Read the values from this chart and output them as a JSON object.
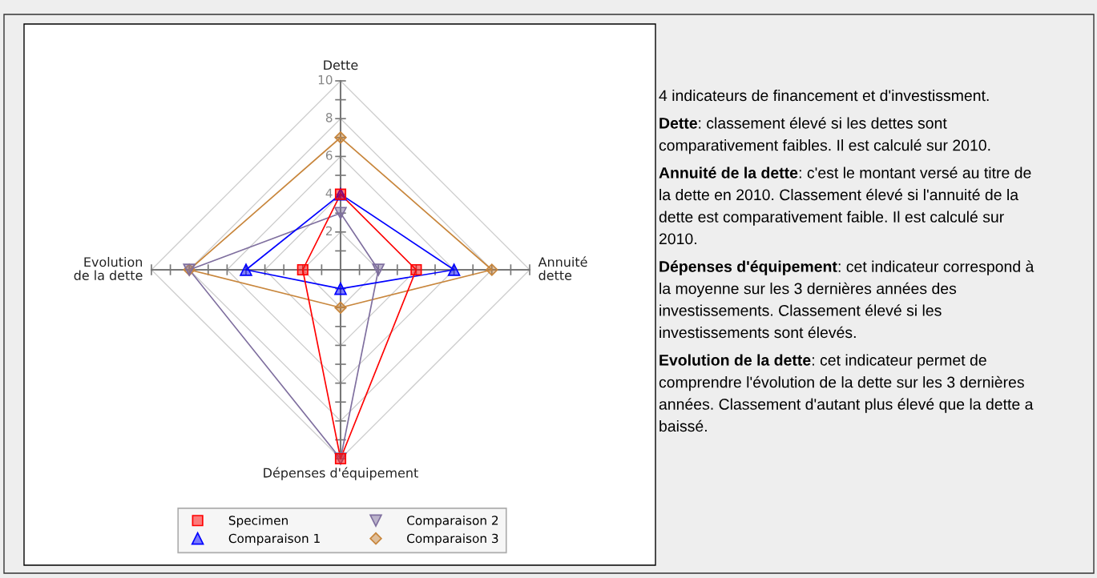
{
  "chart_data": {
    "type": "radar",
    "categories": [
      "Dette",
      "Annuité\ndette",
      "Dépenses d'équipement",
      "Evolution\nde la dette"
    ],
    "series": [
      {
        "name": "Specimen",
        "color": "#ff0000",
        "marker": "square",
        "values": [
          4,
          4,
          10,
          2
        ]
      },
      {
        "name": "Comparaison 1",
        "color": "#0000ff",
        "marker": "triangle",
        "values": [
          4,
          6,
          1,
          5
        ]
      },
      {
        "name": "Comparaison 2",
        "color": "#7f6f9f",
        "marker": "triangle_down",
        "values": [
          3,
          2,
          10,
          8
        ]
      },
      {
        "name": "Comparaison 3",
        "color": "#c8863c",
        "marker": "diamond",
        "values": [
          7,
          8,
          2,
          8
        ]
      }
    ],
    "ylim": [
      0,
      10
    ],
    "yticks": [
      2,
      4,
      6,
      8,
      10
    ],
    "grid": true,
    "legend": "bottom",
    "annotations": [
      "4 indicateurs de financement et d'investissment.",
      "Dette: classement élevé si les dettes sont comparativement faibles. Il est calculé sur 2010.",
      "Annuité de la dette: c'est le montant versé au titre de la dette en 2010. Classement élevé si l'annuité de la dette est comparativement faible. Il est calculé sur 2010.",
      "Dépenses d'équipement: cet indicateur correspond à la moyenne sur les 3 dernières années des investissements. Classement élevé si les investissements sont élevés.",
      "Evolution de la dette: cet indicateur permet de comprendre l'évolution de la dette sur les 3 dernières années. Classement d'autant plus élevé que la dette a baissé."
    ]
  }
}
